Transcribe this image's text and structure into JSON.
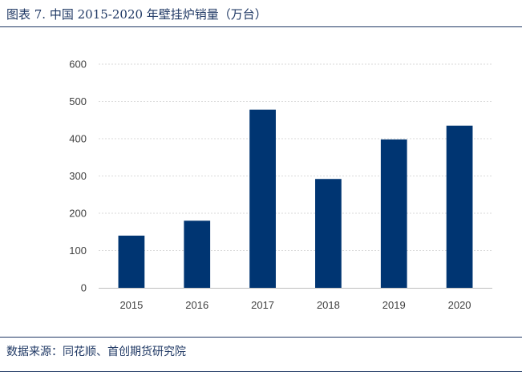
{
  "header": {
    "title": "图表 7. 中国 2015-2020 年壁挂炉销量（万台）"
  },
  "footer": {
    "source": "数据来源：同花顺、首创期货研究院"
  },
  "colors": {
    "bar": "#003572",
    "grid": "#d9d9d9",
    "axis": "#bfbfbf",
    "accent": "#1f3864"
  },
  "chart_data": {
    "type": "bar",
    "title": "图表 7. 中国 2015-2020 年壁挂炉销量（万台）",
    "categories": [
      "2015",
      "2016",
      "2017",
      "2018",
      "2019",
      "2020"
    ],
    "values": [
      140,
      180,
      478,
      292,
      398,
      435
    ],
    "xlabel": "",
    "ylabel": "",
    "ylim": [
      0,
      600
    ],
    "yticks": [
      0,
      100,
      200,
      300,
      400,
      500,
      600
    ],
    "grid": true,
    "legend": "none"
  }
}
